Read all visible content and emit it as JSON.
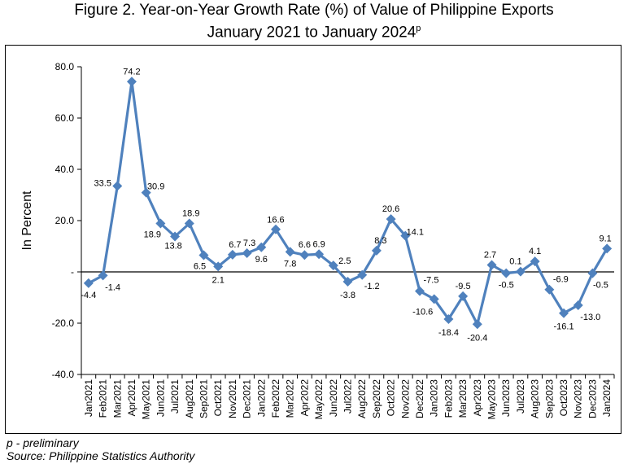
{
  "title_line1": "Figure 2. Year-on-Year Growth Rate (%) of Value of Philippine Exports",
  "title_line2": "January 2021 to January 2024",
  "title_sup": "p",
  "footnote": "p - preliminary",
  "source": "Source: Philippine Statistics Authority",
  "colors": {
    "series": "#4F81BD"
  },
  "chart_data": {
    "type": "line",
    "ylabel": "In Percent",
    "ylim": [
      -40,
      80
    ],
    "yticks": [
      80,
      60,
      40,
      20,
      0,
      -20,
      -40
    ],
    "ytick_labels": [
      "80.0",
      "60.0",
      "40.0",
      "20.0",
      "-",
      "-20.0",
      "-40.0"
    ],
    "grid": false,
    "categories": [
      "Jan2021",
      "Feb2021",
      "Mar2021",
      "Apr2021",
      "May2021",
      "Jun2021",
      "Jul2021",
      "Aug2021",
      "Sep2021",
      "Oct2021",
      "Nov2021",
      "Dec2021",
      "Jan2022",
      "Feb2022",
      "Mar2022",
      "Apr2022",
      "May2022",
      "Jun2022",
      "Jul2022",
      "Aug2022",
      "Sep2022",
      "Oct2022",
      "Nov2022",
      "Dec2022",
      "Jan2023",
      "Feb2023",
      "Mar2023",
      "Apr2023",
      "May2023",
      "Jun2023",
      "Jul2023",
      "Aug2023",
      "Sep2023",
      "Oct2023",
      "Nov2023",
      "Dec2023",
      "Jan2024"
    ],
    "values": [
      -4.4,
      -1.4,
      33.5,
      74.2,
      30.9,
      18.9,
      13.8,
      18.9,
      6.5,
      2.1,
      6.7,
      7.3,
      9.6,
      16.6,
      7.8,
      6.6,
      6.9,
      2.5,
      -3.8,
      -1.2,
      8.3,
      20.6,
      14.1,
      -7.5,
      -10.6,
      -18.4,
      -9.5,
      -20.4,
      2.7,
      -0.5,
      0.1,
      4.1,
      -6.9,
      -16.1,
      -13.0,
      -0.5,
      9.1
    ],
    "data_labels": [
      "-4.4",
      "-1.4",
      "33.5",
      "74.2",
      "30.9",
      "18.9",
      "13.8",
      "18.9",
      "6.5",
      "2.1",
      "6.7",
      "7.3",
      "9.6",
      "16.6",
      "7.8",
      "6.6",
      "6.9",
      "2.5",
      "-3.8",
      "-1.2",
      "8.3",
      "20.6",
      "14.1",
      "-7.5",
      "-10.6",
      "-18.4",
      "-9.5",
      "-20.4",
      "2.7",
      "-0.5",
      "0.1",
      "4.1",
      "-6.9",
      "-16.1",
      "-13.0",
      "-0.5",
      "9.1"
    ]
  }
}
